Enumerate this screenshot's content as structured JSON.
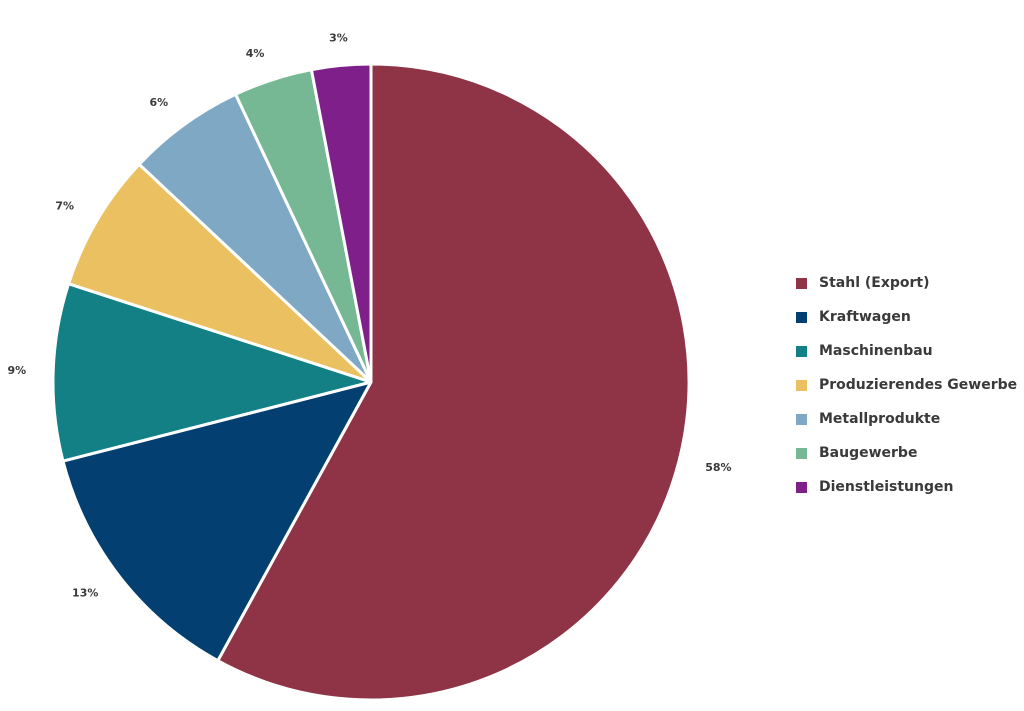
{
  "chart_data": {
    "type": "pie",
    "title": "",
    "categories": [
      "Stahl (Export)",
      "Kraftwagen",
      "Maschinenbau",
      "Produzierendes Gewerbe",
      "Metallprodukte",
      "Baugewerbe",
      "Dienstleistungen"
    ],
    "values": [
      58,
      13,
      9,
      7,
      6,
      4,
      3
    ],
    "labels": [
      "58%",
      "13%",
      "9%",
      "7%",
      "6%",
      "4%",
      "3%"
    ],
    "colors": [
      "#8e3446",
      "#033f70",
      "#128085",
      "#ebc060",
      "#7fa8c4",
      "#76b894",
      "#7e1f8a"
    ],
    "start_angle": "12 o'clock",
    "direction": "clockwise",
    "legend_position": "right"
  }
}
